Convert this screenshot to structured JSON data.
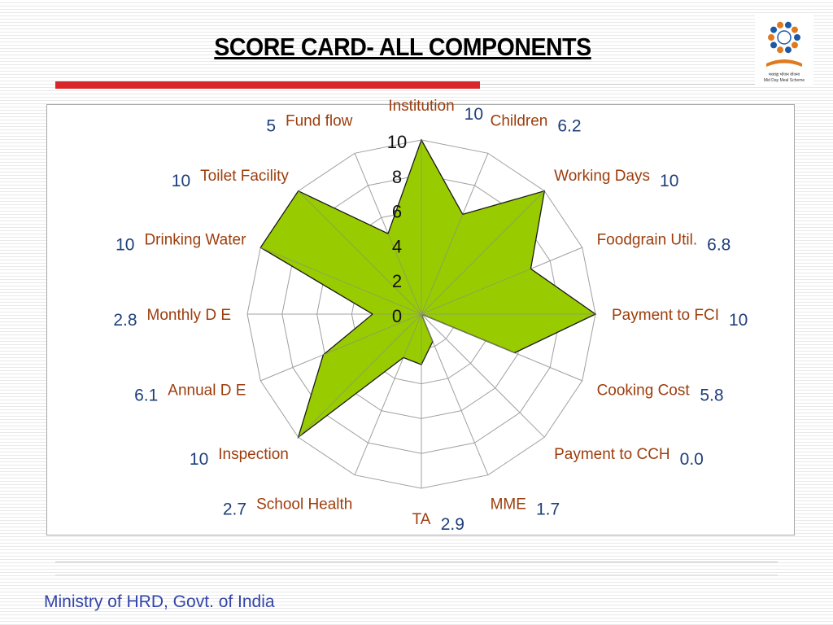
{
  "slide": {
    "title": "SCORE CARD- ALL COMPONENTS",
    "footer": "Ministry of HRD, Govt. of India",
    "logo_text_hindi": "मध्याह्न भोजन योजना",
    "logo_text": "Mid Day Meal Scheme"
  },
  "colors": {
    "accent_bar": "#d9262b",
    "series_fill": "#99cc00",
    "category_label": "#9c3d0c",
    "value_label": "#1f3f7a",
    "footer": "#3344aa"
  },
  "chart_data": {
    "type": "radar",
    "title": "",
    "rlim": [
      0,
      10
    ],
    "r_ticks": [
      0,
      2,
      4,
      6,
      8,
      10
    ],
    "grid": true,
    "legend": "none",
    "categories": [
      "Institution",
      "Children",
      "Working Days",
      "Foodgrain Util.",
      "Payment to FCI",
      "Cooking Cost",
      "Payment to CCH",
      "MME",
      "TA",
      "School Health",
      "Inspection",
      "Annual D E",
      "Monthly D E",
      "Drinking Water",
      "Toilet Facility",
      "Fund flow"
    ],
    "values": [
      10,
      6.2,
      10,
      6.8,
      10,
      5.8,
      0.0,
      1.7,
      2.9,
      2.7,
      10,
      6.1,
      2.8,
      10,
      10,
      5
    ],
    "value_labels": [
      "10",
      "6.2",
      "10",
      "6.8",
      "10",
      "5.8",
      "0.0",
      "1.7",
      "2.9",
      "2.7",
      "10",
      "6.1",
      "2.8",
      "10",
      "10",
      "5"
    ]
  }
}
